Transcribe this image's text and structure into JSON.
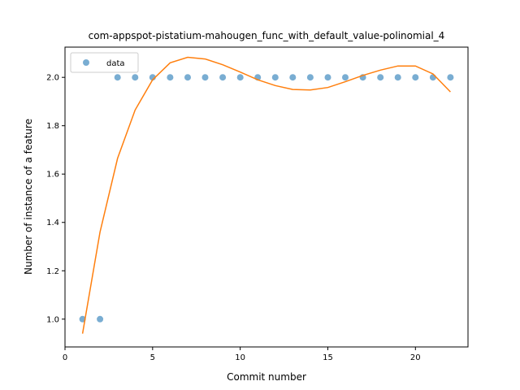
{
  "chart_data": {
    "type": "scatter",
    "title": "com-appspot-pistatium-mahougen_func_with_default_value-polinomial_4",
    "xlabel": "Commit number",
    "ylabel": "Number of instance of a feature",
    "xlim": [
      0,
      23
    ],
    "ylim": [
      0.885,
      2.125
    ],
    "xticks": [
      0,
      5,
      10,
      15,
      20
    ],
    "yticks": [
      1.0,
      1.2,
      1.4,
      1.6,
      1.8,
      2.0
    ],
    "legend_position": "upper-left",
    "grid": false,
    "series": [
      {
        "name": "data",
        "kind": "scatter",
        "color": "#1f77b4",
        "x": [
          1,
          2,
          3,
          4,
          5,
          6,
          7,
          8,
          9,
          10,
          11,
          12,
          13,
          14,
          15,
          16,
          17,
          18,
          19,
          20,
          21,
          22
        ],
        "y": [
          1,
          1,
          2,
          2,
          2,
          2,
          2,
          2,
          2,
          2,
          2,
          2,
          2,
          2,
          2,
          2,
          2,
          2,
          2,
          2,
          2,
          2
        ]
      },
      {
        "kind": "line",
        "color": "#ff7f0e",
        "x": [
          1,
          2,
          3,
          4,
          5,
          6,
          7,
          8,
          9,
          10,
          11,
          12,
          13,
          14,
          15,
          16,
          17,
          18,
          19,
          20,
          21,
          22
        ],
        "y": [
          0.94,
          1.36,
          1.665,
          1.865,
          1.99,
          2.06,
          2.083,
          2.076,
          2.052,
          2.022,
          1.99,
          1.966,
          1.95,
          1.948,
          1.958,
          1.982,
          2.008,
          2.03,
          2.047,
          2.047,
          2.014,
          1.94
        ]
      }
    ]
  }
}
